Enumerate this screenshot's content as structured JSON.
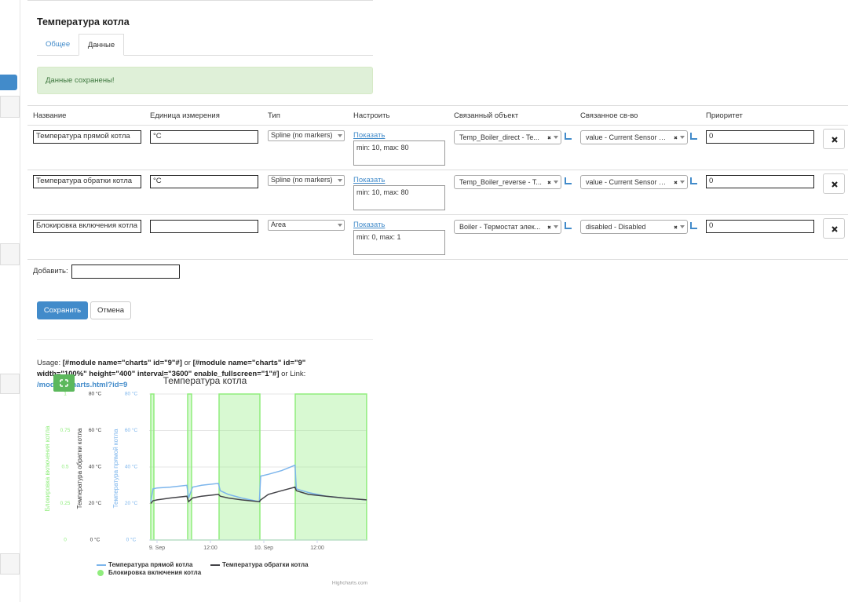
{
  "page": {
    "title": "Температура котла",
    "tabs": [
      "Общее",
      "Данные"
    ],
    "alert": "Данные сохранены!"
  },
  "table": {
    "headers": [
      "Название",
      "Единица измерения",
      "Тип",
      "Настроить",
      "Связанный объект",
      "Связанное св-во",
      "Приоритет"
    ],
    "rows": [
      {
        "name": "Температура прямой котла",
        "unit": "°C",
        "type": "Spline (no markers)",
        "link": "Показать",
        "config": "min: 10, max: 80",
        "object": "Temp_Boiler_direct - Te...",
        "property": "value - Current Sensor V...",
        "priority": "0"
      },
      {
        "name": "Температура обратки котла",
        "unit": "°C",
        "type": "Spline (no markers)",
        "link": "Показать",
        "config": "min: 10, max: 80",
        "object": "Temp_Boiler_reverse - T...",
        "property": "value - Current Sensor V...",
        "priority": "0"
      },
      {
        "name": "Блокировка включения котла",
        "unit": "",
        "type": "Area",
        "link": "Показать",
        "config": "min: 0, max: 1",
        "object": "Boiler - Термостат элек...",
        "property": "disabled - Disabled",
        "priority": "0"
      }
    ],
    "add_label": "Добавить:"
  },
  "buttons": {
    "save": "Сохранить",
    "cancel": "Отмена"
  },
  "usage": {
    "prefix": "Usage:",
    "code1": "[#module name=\"charts\" id=\"9\"#]",
    "or": "or",
    "code2": "[#module name=\"charts\" id=\"9\" width=\"100%\" height=\"400\" interval=\"3600\" enable_fullscreen=\"1\"#]",
    "link_prefix": "or Link:",
    "link": "/module/charts.html?id=9"
  },
  "chart_data": {
    "type": "line",
    "title": "Температура котла",
    "credits": "Highcharts.com",
    "grid": true,
    "xlim": [
      -1.8,
      47.1
    ],
    "xticks": [
      {
        "value": 0,
        "label": "9. Sep"
      },
      {
        "value": 12,
        "label": "12:00"
      },
      {
        "value": 24,
        "label": "10. Sep"
      },
      {
        "value": 36,
        "label": "12:00"
      }
    ],
    "ylabel": "Блокировка включения котла",
    "ylim": [
      0,
      1
    ],
    "yticks": [
      0,
      0.25,
      0.5,
      0.75,
      1
    ],
    "y2label": "Температура обратки котла",
    "y2lim": [
      0,
      80
    ],
    "y2ticks": [
      {
        "value": 0,
        "label": "0 °C"
      },
      {
        "value": 20,
        "label": "20 °C"
      },
      {
        "value": 40,
        "label": "40 °C"
      },
      {
        "value": 60,
        "label": "60 °C"
      },
      {
        "value": 80,
        "label": "80 °C"
      }
    ],
    "y3label": "Температура прямой котла",
    "y3lim": [
      0,
      80
    ],
    "y3ticks": [
      {
        "value": 0,
        "label": "0 °C"
      },
      {
        "value": 20,
        "label": "20 °C"
      },
      {
        "value": 40,
        "label": "40 °C"
      },
      {
        "value": 60,
        "label": "60 °C"
      },
      {
        "value": 80,
        "label": "80 °C"
      }
    ],
    "series": [
      {
        "name": "Блокировка включения котла",
        "type": "area",
        "color": "#90ed7d",
        "axis": "y",
        "x": [
          -1.41,
          -1.41,
          -0.71,
          -0.71,
          6.88,
          6.88,
          7.76,
          7.76,
          13.94,
          13.94,
          23.12,
          23.12,
          31.06,
          31.06,
          47.1
        ],
        "values": [
          0,
          1,
          1,
          0,
          0,
          1,
          1,
          0,
          0,
          1,
          1,
          0,
          0,
          1,
          1
        ]
      },
      {
        "name": "Температура прямой котла",
        "type": "line",
        "color": "#7cb5ec",
        "axis": "y3",
        "x": [
          -1.41,
          -0.9,
          0,
          3,
          6.7,
          7.1,
          8,
          10,
          13.8,
          14.2,
          16,
          19,
          23,
          23.3,
          25,
          28,
          31,
          31.3,
          34,
          38,
          42,
          47.1
        ],
        "values": [
          21,
          28,
          28.5,
          29,
          30,
          23,
          29,
          30,
          31,
          27,
          25,
          23,
          21,
          35,
          36,
          38,
          41,
          28,
          26,
          24,
          23,
          22
        ]
      },
      {
        "name": "Температура обратки котла",
        "type": "line",
        "color": "#434348",
        "axis": "y2",
        "x": [
          -1.41,
          -0.9,
          0,
          3,
          6.7,
          7.1,
          8,
          10,
          13.8,
          14.2,
          16,
          19,
          23,
          23.3,
          25,
          28,
          31,
          31.3,
          34,
          38,
          42,
          47.1
        ],
        "values": [
          20,
          21.5,
          22,
          23,
          24,
          21,
          23,
          24,
          25,
          24,
          23,
          22,
          21,
          22,
          25,
          27,
          29,
          27,
          25,
          24,
          23,
          22
        ]
      }
    ]
  }
}
